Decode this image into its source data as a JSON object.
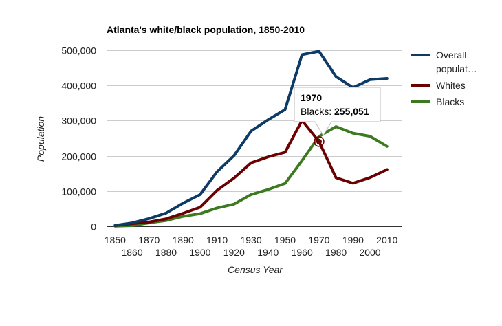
{
  "chart_data": {
    "type": "line",
    "title": "Atlanta's white/black population, 1850-2010",
    "xlabel": "Census Year",
    "ylabel": "Population",
    "ylim": [
      0,
      500000
    ],
    "yticks": [
      "0",
      "100,000",
      "200,000",
      "300,000",
      "400,000",
      "500,000"
    ],
    "x": [
      1850,
      1860,
      1870,
      1880,
      1890,
      1900,
      1910,
      1920,
      1930,
      1940,
      1950,
      1960,
      1970,
      1980,
      1990,
      2000,
      2010
    ],
    "xticks_upper": [
      "1850",
      "1870",
      "1890",
      "1910",
      "1930",
      "1950",
      "1970",
      "1990",
      "2010"
    ],
    "xticks_lower": [
      "1860",
      "1880",
      "1900",
      "1920",
      "1940",
      "1960",
      "1980",
      "2000"
    ],
    "grid": true,
    "legend_position": "right",
    "series": [
      {
        "name": "Overall populat…",
        "color": "#0d3b66",
        "values": [
          2572,
          9554,
          21789,
          37409,
          65533,
          89872,
          154839,
          200616,
          270366,
          302288,
          331314,
          487455,
          496973,
          425022,
          394017,
          416474,
          420003
        ]
      },
      {
        "name": "Whites",
        "color": "#6b0000",
        "values": [
          2060,
          7600,
          12000,
          21000,
          37000,
          54000,
          102000,
          137000,
          180000,
          197000,
          210000,
          300635,
          240503,
          137879,
          122327,
          138352,
          161115
        ]
      },
      {
        "name": "Blacks",
        "color": "#3d7a1f",
        "values": [
          512,
          1900,
          9800,
          16300,
          28100,
          35700,
          51900,
          62800,
          90100,
          104500,
          121400,
          186464,
          255051,
          282912,
          264262,
          255689,
          226894
        ]
      }
    ],
    "tooltip": {
      "title": "1970",
      "label": "Blacks:",
      "value": "255,051",
      "series_index": 2,
      "x_index": 12
    }
  }
}
